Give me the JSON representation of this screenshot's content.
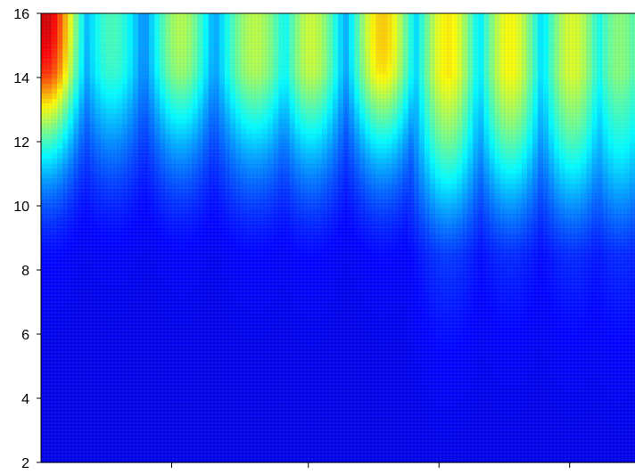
{
  "chart_data": {
    "type": "heatmap",
    "title": "",
    "xlabel": "",
    "ylabel": "",
    "ylim": [
      2,
      16
    ],
    "yticks": [
      2,
      4,
      6,
      8,
      10,
      12,
      14,
      16
    ],
    "yticklabels": [
      "2",
      "4",
      "6",
      "8",
      "10",
      "12",
      "14",
      "16"
    ],
    "xlim": [
      0,
      1
    ],
    "xticks": [
      0.22,
      0.45,
      0.67,
      0.89
    ],
    "xticklabels": [],
    "colormap": "jet",
    "colors": {
      "low": "#00008f",
      "high": "#800000",
      "axis": "#000000"
    },
    "grid": true,
    "ridges": [
      {
        "x": 0.008,
        "peak_y": 16.0,
        "intensity": 1.0,
        "width": 0.06
      },
      {
        "x": 0.12,
        "peak_y": 15.4,
        "intensity": 0.42,
        "width": 0.06
      },
      {
        "x": 0.235,
        "peak_y": 15.6,
        "intensity": 0.55,
        "width": 0.06
      },
      {
        "x": 0.36,
        "peak_y": 15.2,
        "intensity": 0.56,
        "width": 0.07
      },
      {
        "x": 0.455,
        "peak_y": 15.0,
        "intensity": 0.58,
        "width": 0.06
      },
      {
        "x": 0.575,
        "peak_y": 15.4,
        "intensity": 0.7,
        "width": 0.06
      },
      {
        "x": 0.685,
        "peak_y": 12.4,
        "intensity": 0.66,
        "width": 0.06
      },
      {
        "x": 0.79,
        "peak_y": 13.0,
        "intensity": 0.64,
        "width": 0.06
      },
      {
        "x": 0.895,
        "peak_y": 12.8,
        "intensity": 0.6,
        "width": 0.06
      },
      {
        "x": 0.975,
        "peak_y": 12.2,
        "intensity": 0.5,
        "width": 0.06
      }
    ]
  }
}
